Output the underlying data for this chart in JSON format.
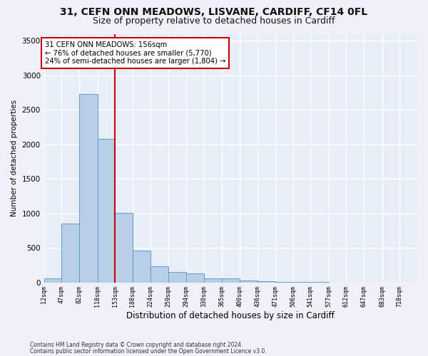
{
  "title1": "31, CEFN ONN MEADOWS, LISVANE, CARDIFF, CF14 0FL",
  "title2": "Size of property relative to detached houses in Cardiff",
  "xlabel": "Distribution of detached houses by size in Cardiff",
  "ylabel": "Number of detached properties",
  "footnote1": "Contains HM Land Registry data © Crown copyright and database right 2024.",
  "footnote2": "Contains public sector information licensed under the Open Government Licence v3.0.",
  "bar_edges": [
    12,
    47,
    82,
    118,
    153,
    188,
    224,
    259,
    294,
    330,
    365,
    400,
    436,
    471,
    506,
    541,
    577,
    612,
    647,
    683,
    718,
    753
  ],
  "bar_heights": [
    60,
    850,
    2730,
    2080,
    1010,
    460,
    230,
    155,
    130,
    60,
    55,
    30,
    20,
    5,
    2,
    1,
    0,
    0,
    0,
    0,
    0
  ],
  "bar_color": "#b8cfe8",
  "bar_edge_color": "#6699cc",
  "vline_x": 153,
  "vline_color": "#cc0000",
  "annotation_line1": "31 CEFN ONN MEADOWS: 156sqm",
  "annotation_line2": "← 76% of detached houses are smaller (5,770)",
  "annotation_line3": "24% of semi-detached houses are larger (1,804) →",
  "annotation_box_edgecolor": "#cc0000",
  "ylim": [
    0,
    3600
  ],
  "yticks": [
    0,
    500,
    1000,
    1500,
    2000,
    2500,
    3000,
    3500
  ],
  "xlim_min": 12,
  "xlim_max": 753,
  "bg_color": "#e8eef8",
  "grid_color": "#ffffff",
  "title1_fontsize": 10,
  "title2_fontsize": 9
}
